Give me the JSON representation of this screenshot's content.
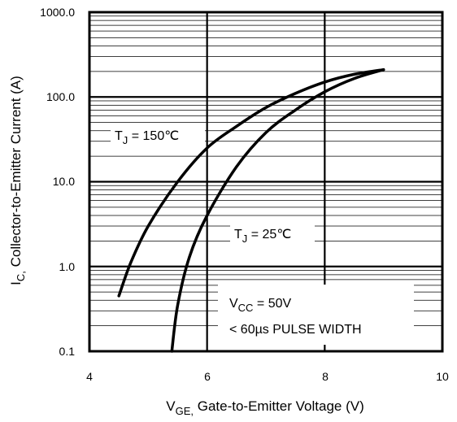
{
  "chart_data": {
    "type": "line",
    "y_scale": "log",
    "x_ticks": [
      "4",
      "6",
      "8",
      "10"
    ],
    "y_ticks": [
      "0.1",
      "1.0",
      "10.0",
      "100.0",
      "1000.0"
    ],
    "xlim": [
      4,
      10
    ],
    "ylim": [
      0.1,
      1000
    ],
    "grid": true,
    "xlabel": {
      "main": "V",
      "sub": "GE,",
      "rest": " Gate-to-Emitter Voltage (V)"
    },
    "ylabel": {
      "main": "I",
      "sub": "C,",
      "rest": "  Collector-to-Emitter Current (A)"
    },
    "series": [
      {
        "label": {
          "main": "T",
          "sub": "J",
          "rest": " = 150℃"
        },
        "x": [
          4.5,
          4.7,
          5.0,
          5.5,
          6.0,
          6.5,
          7.0,
          7.5,
          8.0,
          8.5,
          9.0
        ],
        "y": [
          0.45,
          1.1,
          3.0,
          10.0,
          25.0,
          45.0,
          75.0,
          110.0,
          150.0,
          185.0,
          210.0
        ]
      },
      {
        "label": {
          "main": "T",
          "sub": "J",
          "rest": " = 25℃"
        },
        "x": [
          5.4,
          5.5,
          5.7,
          6.0,
          6.5,
          7.0,
          7.5,
          8.0,
          8.5,
          9.0
        ],
        "y": [
          0.1,
          0.35,
          1.3,
          4.0,
          15.0,
          38.0,
          70.0,
          115.0,
          165.0,
          210.0
        ]
      }
    ],
    "annotation": {
      "line1": {
        "main": "V",
        "sub": "CC",
        "rest": " = 50V"
      },
      "line2": "< 60µs PULSE WIDTH"
    }
  }
}
